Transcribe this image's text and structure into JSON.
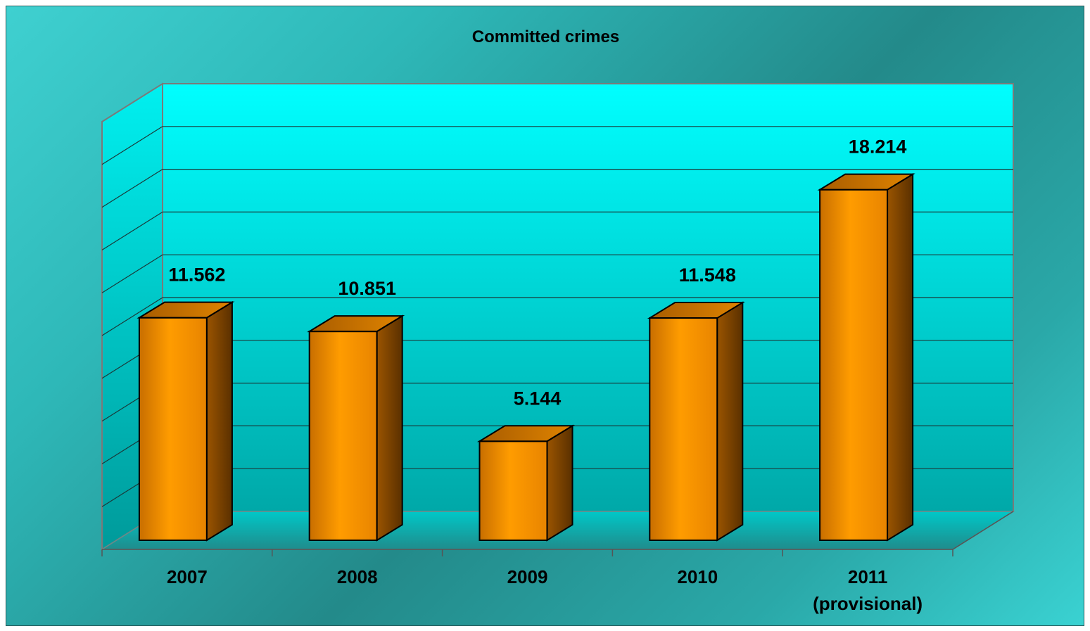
{
  "chart_data": {
    "type": "bar",
    "title": "Committed crimes",
    "categories": [
      "2007",
      "2008",
      "2009",
      "2010",
      "2011\n(provisional)"
    ],
    "values": [
      11562,
      10851,
      5144,
      11548,
      18214
    ],
    "value_labels": [
      "11.562",
      "10.851",
      "5.144",
      "11.548",
      "18.214"
    ],
    "ylim": [
      0,
      20000
    ],
    "y_gridlines": 10,
    "ytick_labels_shown": false,
    "grid": true,
    "legend": "none",
    "style": "3d-columns",
    "colors": {
      "bar_front": "#ff9a00",
      "bar_side": "#7a4300",
      "bar_top": "#b86800",
      "plot_wall": "#00ffff",
      "background": "#2aa8a8"
    }
  }
}
